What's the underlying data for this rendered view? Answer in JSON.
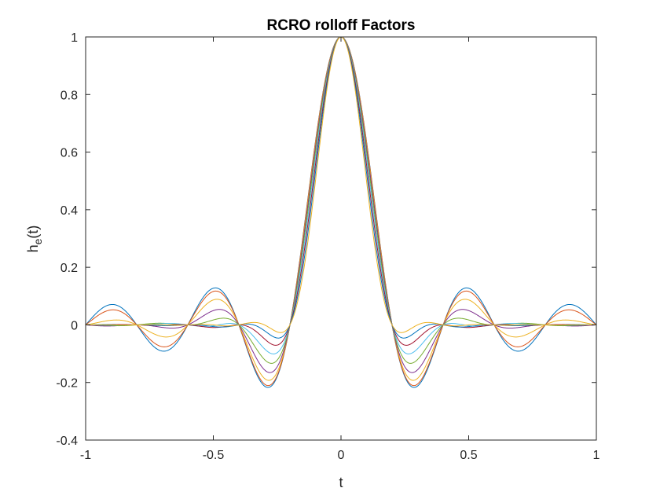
{
  "chart_data": {
    "type": "line",
    "title": "RCRO rolloff Factors",
    "xlabel": "t",
    "ylabel": {
      "base": "h",
      "subscript": "e",
      "suffix": "(t)"
    },
    "xlim": [
      -1,
      1
    ],
    "ylim": [
      -0.4,
      1
    ],
    "xticks": [
      -1,
      -0.5,
      0,
      0.5,
      1
    ],
    "xtick_labels": [
      "-1",
      "-0.5",
      "0",
      "0.5",
      "1"
    ],
    "yticks": [
      -0.4,
      -0.2,
      0,
      0.2,
      0.4,
      0.6,
      0.8,
      1
    ],
    "ytick_labels": [
      "-0.4",
      "-0.2",
      "0",
      "0.2",
      "0.4",
      "0.6",
      "0.8",
      "1"
    ],
    "grid": false,
    "legend": "none",
    "symbol_period": 0.2,
    "rolloff_factors": [
      0,
      0.125,
      0.25,
      0.375,
      0.5,
      0.625,
      0.75,
      0.875,
      1
    ],
    "series": [
      {
        "rolloff": 0,
        "color": "#0072BD"
      },
      {
        "rolloff": 0.125,
        "color": "#D95319"
      },
      {
        "rolloff": 0.25,
        "color": "#EDB120"
      },
      {
        "rolloff": 0.375,
        "color": "#7E2F8E"
      },
      {
        "rolloff": 0.5,
        "color": "#77AC30"
      },
      {
        "rolloff": 0.625,
        "color": "#4DBEEE"
      },
      {
        "rolloff": 0.75,
        "color": "#A2142F"
      },
      {
        "rolloff": 0.875,
        "color": "#0072BD"
      },
      {
        "rolloff": 1,
        "color": "#EDB120"
      }
    ]
  }
}
